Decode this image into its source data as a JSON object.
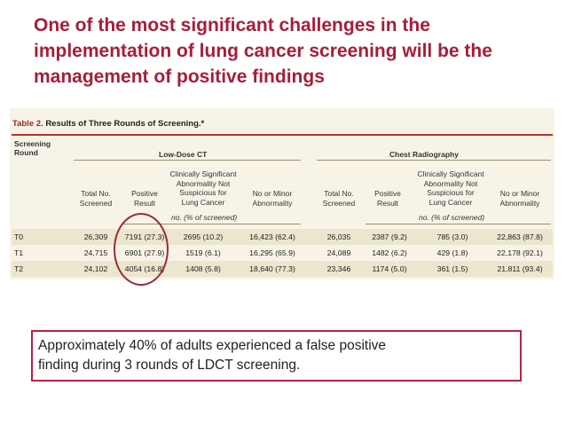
{
  "title_lines": [
    "One of the most significant challenges in the",
    "implementation of lung cancer screening will be the",
    "management of positive findings"
  ],
  "table": {
    "caption_label": "Table 2.",
    "caption_text": "Results of Three Rounds of Screening.*",
    "round_header": [
      "Screening",
      "Round"
    ],
    "groups": [
      "Low-Dose CT",
      "Chest Radiography"
    ],
    "columns": {
      "total": [
        "Total No.",
        "Screened"
      ],
      "positive": [
        "Positive",
        "Result"
      ],
      "clinical": [
        "Clinically Significant",
        "Abnormality Not",
        "Suspicious for",
        "Lung Cancer"
      ],
      "minor": [
        "No or Minor",
        "Abnormality"
      ]
    },
    "unit_label": "no. (% of screened)",
    "rows": [
      {
        "round": "T0",
        "ct": [
          "26,309",
          "7191 (27.3)",
          "2695 (10.2)",
          "16,423 (62.4)"
        ],
        "xr": [
          "26,035",
          "2387 (9.2)",
          "785 (3.0)",
          "22,863 (87.8)"
        ]
      },
      {
        "round": "T1",
        "ct": [
          "24,715",
          "6901 (27.9)",
          "1519 (6.1)",
          "16,295 (65.9)"
        ],
        "xr": [
          "24,089",
          "1482 (6.2)",
          "429 (1.8)",
          "22,178 (92.1)"
        ]
      },
      {
        "round": "T2",
        "ct": [
          "24,102",
          "4054 (16.8)",
          "1408 (5.8)",
          "18,640 (77.3)"
        ],
        "xr": [
          "23,346",
          "1174 (5.0)",
          "361 (1.5)",
          "21,811 (93.4)"
        ]
      }
    ]
  },
  "note_lines": [
    "Approximately 40% of adults experienced a false positive",
    "finding during 3 rounds of LDCT screening."
  ],
  "colors": {
    "title": "#a51e3a",
    "circle": "#9b2b3c",
    "note_border": "#b4243c",
    "table_bg": "#f7f4e7"
  }
}
